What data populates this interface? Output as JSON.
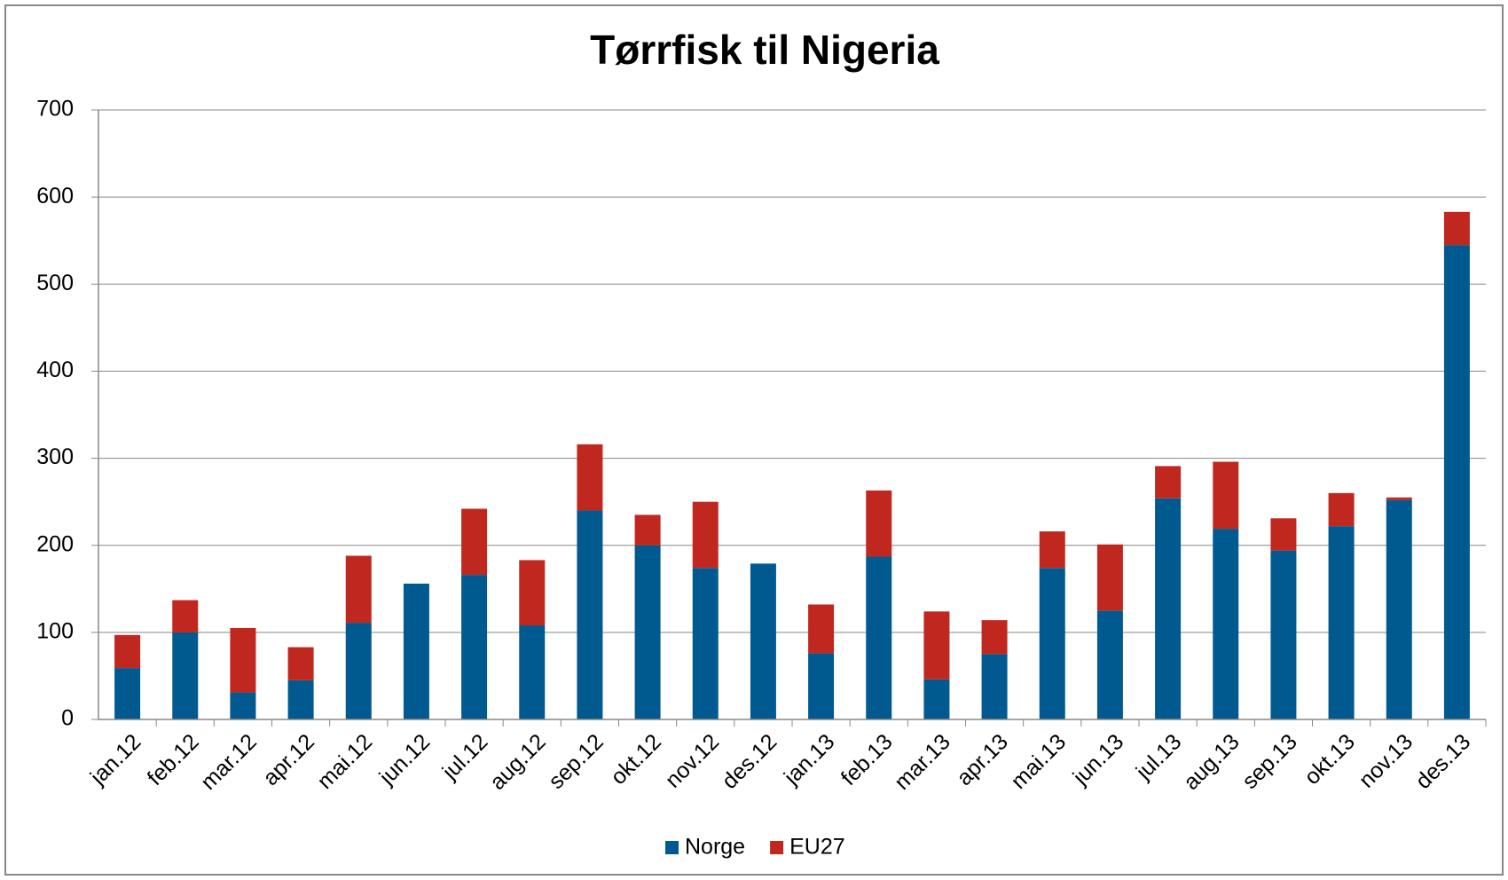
{
  "chart_data": {
    "type": "bar",
    "stacked": true,
    "title": "Tørrfisk til Nigeria",
    "categories": [
      "jan.12",
      "feb.12",
      "mar.12",
      "apr.12",
      "mai.12",
      "jun.12",
      "jul.12",
      "aug.12",
      "sep.12",
      "okt.12",
      "nov.12",
      "des.12",
      "jan.13",
      "feb.13",
      "mar.13",
      "apr.13",
      "mai.13",
      "jun.13",
      "jul.13",
      "aug.13",
      "sep.13",
      "okt.13",
      "nov.13",
      "des.13"
    ],
    "series": [
      {
        "name": "Norge",
        "color": "#005a8f",
        "values": [
          59,
          100,
          31,
          45,
          111,
          156,
          166,
          108,
          240,
          200,
          174,
          179,
          76,
          187,
          46,
          75,
          174,
          125,
          254,
          219,
          194,
          222,
          252,
          545
        ]
      },
      {
        "name": "EU27",
        "color": "#c0281f",
        "values": [
          38,
          37,
          74,
          38,
          77,
          0,
          76,
          75,
          76,
          35,
          76,
          0,
          56,
          76,
          78,
          39,
          42,
          76,
          37,
          77,
          37,
          38,
          3,
          38
        ]
      }
    ],
    "ylim": [
      0,
      700
    ],
    "yticks": [
      0,
      100,
      200,
      300,
      400,
      500,
      600,
      700
    ],
    "grid": true,
    "legend": "bottom"
  }
}
